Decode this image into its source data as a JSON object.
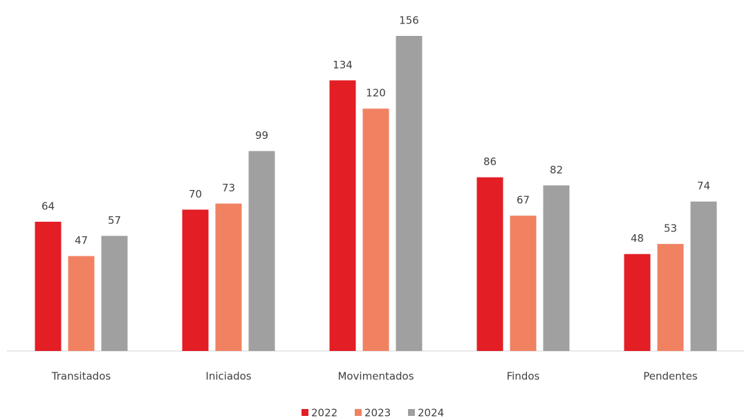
{
  "chart_data": {
    "type": "bar",
    "categories": [
      "Transitados",
      "Iniciados",
      "Movimentados",
      "Findos",
      "Pendentes"
    ],
    "series": [
      {
        "name": "2022",
        "color": "#e31e24",
        "values": [
          64,
          70,
          134,
          86,
          48
        ]
      },
      {
        "name": "2023",
        "color": "#f08262",
        "values": [
          47,
          73,
          120,
          67,
          53
        ]
      },
      {
        "name": "2024",
        "color": "#a0a0a0",
        "values": [
          57,
          99,
          156,
          82,
          74
        ]
      }
    ],
    "legend": "bottom"
  }
}
